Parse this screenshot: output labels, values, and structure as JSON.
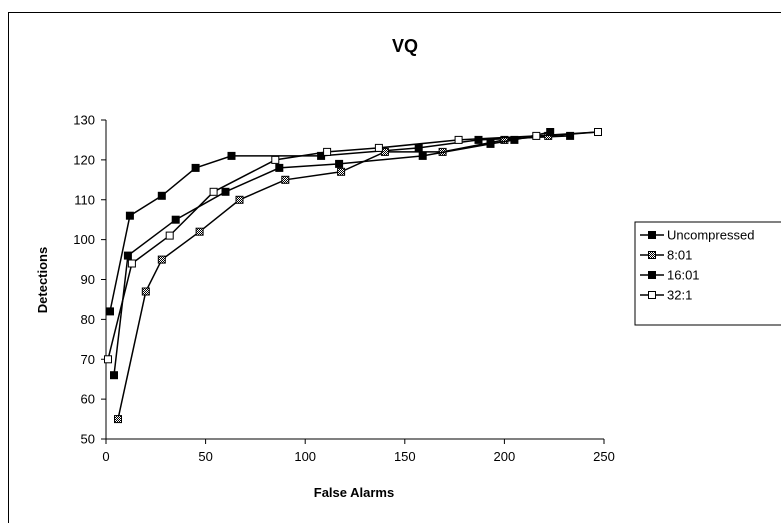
{
  "chart_data": {
    "type": "line",
    "title": "VQ",
    "xlabel": "False Alarms",
    "ylabel": "Detections",
    "xlim": [
      0,
      250
    ],
    "ylim": [
      50,
      130
    ],
    "xticks": [
      0,
      50,
      100,
      150,
      200,
      250
    ],
    "yticks": [
      50,
      60,
      70,
      80,
      90,
      100,
      110,
      120,
      130
    ],
    "grid": false,
    "legend_position": "right",
    "series": [
      {
        "name": "Uncompressed",
        "marker": "filled-square",
        "x": [
          2,
          12,
          28,
          45,
          63,
          108,
          157,
          187,
          233
        ],
        "y": [
          82,
          106,
          111,
          118,
          121,
          121,
          123,
          125,
          126
        ]
      },
      {
        "name": "8:01",
        "marker": "hatched-square",
        "x": [
          6,
          20,
          28,
          47,
          67,
          90,
          118,
          140,
          169,
          200,
          222,
          247
        ],
        "y": [
          55,
          87,
          95,
          102,
          110,
          115,
          117,
          122,
          122,
          125,
          126,
          127
        ]
      },
      {
        "name": "16:01",
        "marker": "filled-square",
        "x": [
          4,
          11,
          35,
          60,
          87,
          117,
          159,
          193,
          205,
          223
        ],
        "y": [
          66,
          96,
          105,
          112,
          118,
          119,
          121,
          124,
          125,
          127
        ]
      },
      {
        "name": "32:1",
        "marker": "open-square",
        "x": [
          1,
          13,
          32,
          54,
          85,
          111,
          137,
          177,
          216,
          247
        ],
        "y": [
          70,
          94,
          101,
          112,
          120,
          122,
          123,
          125,
          126,
          127
        ]
      }
    ]
  }
}
